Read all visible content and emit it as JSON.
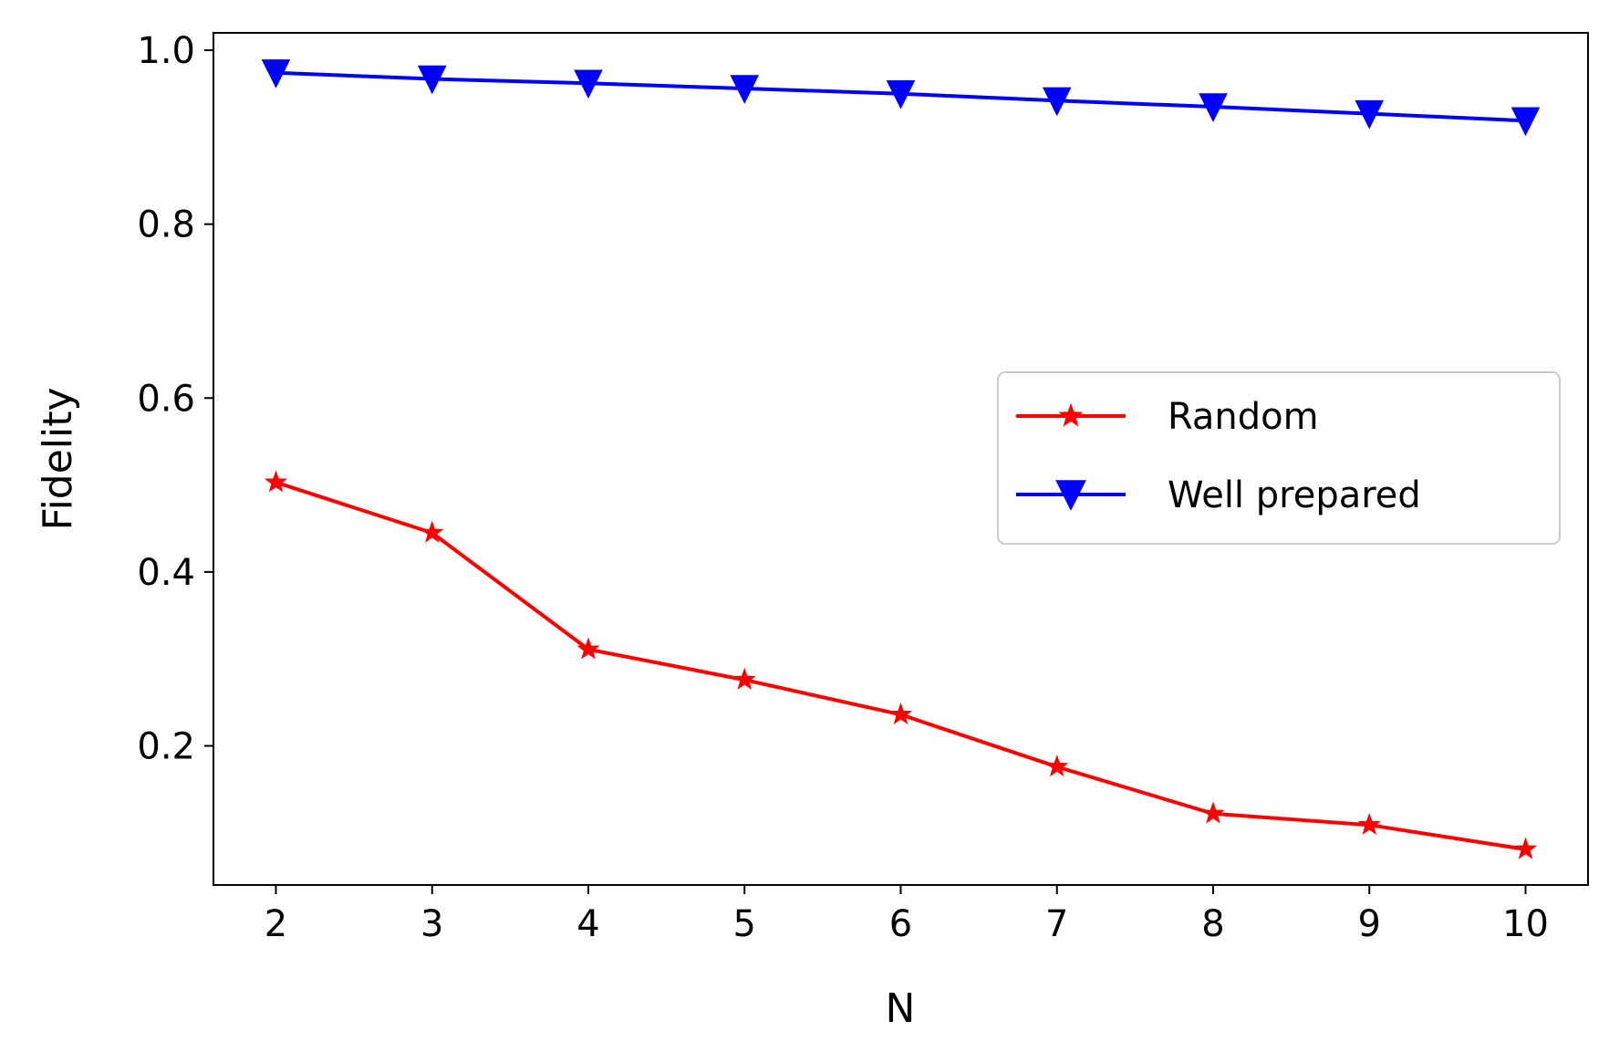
{
  "chart_data": {
    "type": "line",
    "x": [
      2,
      3,
      4,
      5,
      6,
      7,
      8,
      9,
      10
    ],
    "xlabel": "N",
    "ylabel": "Fidelity",
    "xlim": [
      1.6,
      10.4
    ],
    "ylim": [
      0.04,
      1.02
    ],
    "xticks": [
      2,
      3,
      4,
      5,
      6,
      7,
      8,
      9,
      10
    ],
    "xtick_labels": [
      "2",
      "3",
      "4",
      "5",
      "6",
      "7",
      "8",
      "9",
      "10"
    ],
    "yticks": [
      0.2,
      0.4,
      0.6,
      0.8,
      1.0
    ],
    "ytick_labels": [
      "0.2",
      "0.4",
      "0.6",
      "0.8",
      "1.0"
    ],
    "grid": false,
    "legend_position": "center-right",
    "series": [
      {
        "name": "Random",
        "color": "#ff0000",
        "marker": "star",
        "values": [
          0.503,
          0.445,
          0.311,
          0.276,
          0.236,
          0.176,
          0.122,
          0.109,
          0.081
        ]
      },
      {
        "name": "Well prepared",
        "color": "#0000ff",
        "marker": "triangle-down",
        "values": [
          0.974,
          0.967,
          0.962,
          0.956,
          0.95,
          0.942,
          0.935,
          0.927,
          0.919
        ]
      }
    ]
  }
}
